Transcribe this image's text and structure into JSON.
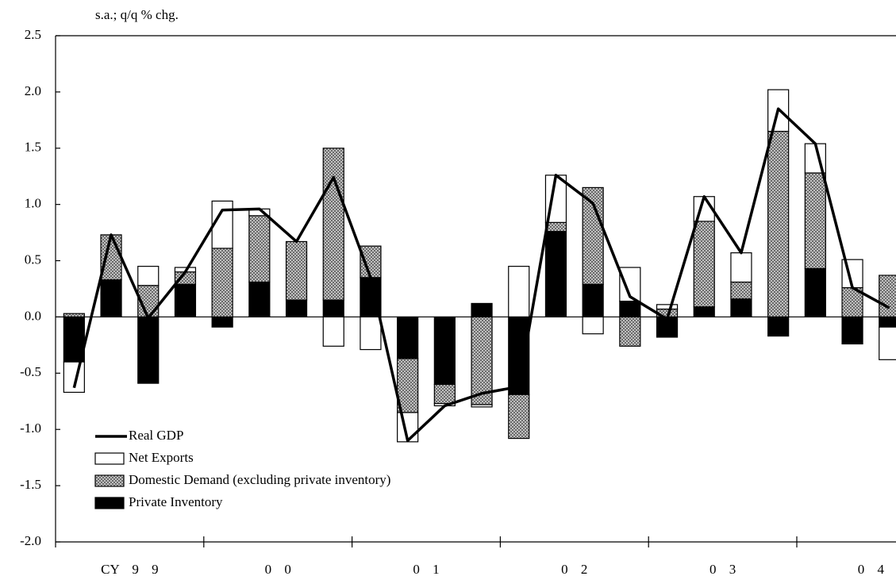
{
  "chart_data": {
    "type": "stacked_bar_line",
    "y_axis_label": "s.a.; q/q % chg.",
    "categories": [
      null,
      null,
      null,
      null,
      null,
      null,
      null,
      null,
      null,
      null,
      null,
      null,
      null,
      null,
      null,
      null,
      null,
      null,
      null,
      null,
      null,
      null,
      null
    ],
    "x_groups": [
      "CY 9 9",
      "0 0",
      "0 1",
      "0 2",
      "0 3",
      "0 4"
    ],
    "ylim": [
      -2.0,
      2.5
    ],
    "yticks": [
      {
        "value": -2.0,
        "label": "-2.0"
      },
      {
        "value": -1.5,
        "label": "-1.5"
      },
      {
        "value": -1.0,
        "label": "-1.0"
      },
      {
        "value": -0.5,
        "label": "-0.5"
      },
      {
        "value": 0.0,
        "label": "0.0"
      },
      {
        "value": 0.5,
        "label": "0.5"
      },
      {
        "value": 1.0,
        "label": "1.0"
      },
      {
        "value": 1.5,
        "label": "1.5"
      },
      {
        "value": 2.0,
        "label": "2.0"
      },
      {
        "value": 2.5,
        "label": "2.5"
      }
    ],
    "grid": false,
    "legend": "lower left",
    "series": [
      {
        "name": "Private Inventory",
        "color": "#000000",
        "values": [
          -0.4,
          0.33,
          -0.59,
          0.29,
          -0.09,
          0.31,
          0.15,
          0.15,
          0.35,
          -0.37,
          -0.6,
          0.12,
          -0.69,
          0.76,
          0.29,
          0.14,
          -0.18,
          0.09,
          0.16,
          -0.17,
          0.43,
          -0.24,
          -0.09
        ]
      },
      {
        "name": "Domestic Demand (excluding private inventory)",
        "color": "#b0b0b0",
        "pattern": "crosshatch",
        "values": [
          0.03,
          0.4,
          0.28,
          0.11,
          0.61,
          0.59,
          0.52,
          1.35,
          0.28,
          -0.48,
          -0.17,
          -0.78,
          -0.39,
          0.08,
          0.86,
          -0.26,
          0.07,
          0.76,
          0.15,
          1.65,
          0.85,
          0.26,
          0.37
        ]
      },
      {
        "name": "Net Exports",
        "color": "#ffffff",
        "values": [
          -0.27,
          0.0,
          0.17,
          0.04,
          0.42,
          0.06,
          0.0,
          -0.26,
          -0.29,
          -0.26,
          -0.02,
          -0.02,
          0.45,
          0.42,
          -0.15,
          0.3,
          0.04,
          0.22,
          0.26,
          0.37,
          0.26,
          0.25,
          -0.29
        ]
      },
      {
        "name": "Real GDP",
        "color": "#000000",
        "kind": "line",
        "values": [
          -0.63,
          0.73,
          -0.01,
          0.4,
          0.95,
          0.96,
          0.67,
          1.24,
          0.35,
          -1.1,
          -0.79,
          -0.68,
          -0.62,
          1.26,
          1.01,
          0.18,
          -0.02,
          1.07,
          0.57,
          1.85,
          1.54,
          0.26,
          0.08
        ]
      }
    ]
  }
}
